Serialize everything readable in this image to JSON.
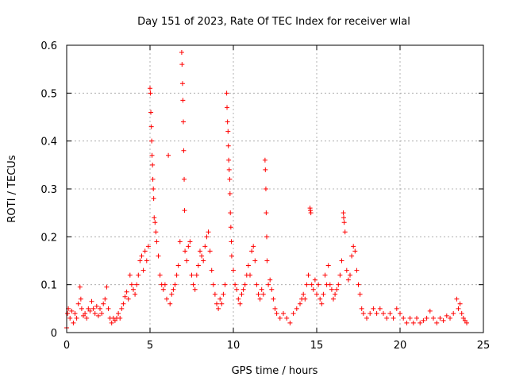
{
  "chart_data": {
    "type": "scatter",
    "title": "Day 151 of 2023, Rate Of TEC Index for receiver wlal",
    "xlabel": "GPS time / hours",
    "ylabel": "ROTI / TECUs",
    "xlim": [
      0,
      25
    ],
    "ylim": [
      0,
      0.6
    ],
    "xticks": [
      "0",
      "5",
      "10",
      "15",
      "20",
      "25"
    ],
    "yticks": [
      "0",
      "0.1",
      "0.2",
      "0.3",
      "0.4",
      "0.5",
      "0.6"
    ],
    "grid": true,
    "marker": "+",
    "series_color": "#ff0000",
    "series": [
      {
        "name": "ROTI",
        "points": [
          [
            0.0,
            0.01
          ],
          [
            0.05,
            0.04
          ],
          [
            0.1,
            0.05
          ],
          [
            0.2,
            0.03
          ],
          [
            0.3,
            0.045
          ],
          [
            0.4,
            0.02
          ],
          [
            0.5,
            0.04
          ],
          [
            0.6,
            0.03
          ],
          [
            0.7,
            0.06
          ],
          [
            0.8,
            0.095
          ],
          [
            0.85,
            0.07
          ],
          [
            0.9,
            0.05
          ],
          [
            1.0,
            0.035
          ],
          [
            1.1,
            0.04
          ],
          [
            1.2,
            0.03
          ],
          [
            1.3,
            0.05
          ],
          [
            1.4,
            0.045
          ],
          [
            1.5,
            0.065
          ],
          [
            1.6,
            0.05
          ],
          [
            1.7,
            0.04
          ],
          [
            1.8,
            0.055
          ],
          [
            1.9,
            0.035
          ],
          [
            2.0,
            0.05
          ],
          [
            2.1,
            0.04
          ],
          [
            2.2,
            0.06
          ],
          [
            2.3,
            0.07
          ],
          [
            2.4,
            0.095
          ],
          [
            2.5,
            0.05
          ],
          [
            2.6,
            0.03
          ],
          [
            2.7,
            0.02
          ],
          [
            2.8,
            0.03
          ],
          [
            2.9,
            0.025
          ],
          [
            3.0,
            0.03
          ],
          [
            3.1,
            0.04
          ],
          [
            3.2,
            0.03
          ],
          [
            3.3,
            0.05
          ],
          [
            3.4,
            0.06
          ],
          [
            3.5,
            0.075
          ],
          [
            3.6,
            0.085
          ],
          [
            3.7,
            0.07
          ],
          [
            3.8,
            0.12
          ],
          [
            3.9,
            0.1
          ],
          [
            4.0,
            0.09
          ],
          [
            4.1,
            0.08
          ],
          [
            4.2,
            0.1
          ],
          [
            4.3,
            0.12
          ],
          [
            4.4,
            0.15
          ],
          [
            4.5,
            0.16
          ],
          [
            4.6,
            0.13
          ],
          [
            4.7,
            0.17
          ],
          [
            4.8,
            0.15
          ],
          [
            4.9,
            0.18
          ],
          [
            5.0,
            0.51
          ],
          [
            5.02,
            0.5
          ],
          [
            5.05,
            0.46
          ],
          [
            5.08,
            0.43
          ],
          [
            5.1,
            0.4
          ],
          [
            5.12,
            0.37
          ],
          [
            5.15,
            0.35
          ],
          [
            5.17,
            0.32
          ],
          [
            5.2,
            0.3
          ],
          [
            5.22,
            0.28
          ],
          [
            5.25,
            0.24
          ],
          [
            5.3,
            0.23
          ],
          [
            5.35,
            0.21
          ],
          [
            5.4,
            0.19
          ],
          [
            5.5,
            0.16
          ],
          [
            5.6,
            0.12
          ],
          [
            5.7,
            0.1
          ],
          [
            5.8,
            0.09
          ],
          [
            5.9,
            0.1
          ],
          [
            6.0,
            0.07
          ],
          [
            6.1,
            0.37
          ],
          [
            6.2,
            0.06
          ],
          [
            6.3,
            0.08
          ],
          [
            6.4,
            0.09
          ],
          [
            6.5,
            0.1
          ],
          [
            6.6,
            0.12
          ],
          [
            6.7,
            0.14
          ],
          [
            6.8,
            0.19
          ],
          [
            6.9,
            0.585
          ],
          [
            6.92,
            0.56
          ],
          [
            6.95,
            0.52
          ],
          [
            6.97,
            0.485
          ],
          [
            7.0,
            0.44
          ],
          [
            7.02,
            0.38
          ],
          [
            7.05,
            0.32
          ],
          [
            7.07,
            0.255
          ],
          [
            7.1,
            0.17
          ],
          [
            7.2,
            0.15
          ],
          [
            7.3,
            0.18
          ],
          [
            7.4,
            0.19
          ],
          [
            7.5,
            0.12
          ],
          [
            7.6,
            0.1
          ],
          [
            7.7,
            0.09
          ],
          [
            7.8,
            0.12
          ],
          [
            7.9,
            0.14
          ],
          [
            8.0,
            0.17
          ],
          [
            8.1,
            0.16
          ],
          [
            8.2,
            0.15
          ],
          [
            8.3,
            0.18
          ],
          [
            8.4,
            0.2
          ],
          [
            8.5,
            0.21
          ],
          [
            8.6,
            0.17
          ],
          [
            8.7,
            0.13
          ],
          [
            8.8,
            0.1
          ],
          [
            8.9,
            0.08
          ],
          [
            9.0,
            0.06
          ],
          [
            9.1,
            0.05
          ],
          [
            9.2,
            0.07
          ],
          [
            9.3,
            0.06
          ],
          [
            9.4,
            0.08
          ],
          [
            9.5,
            0.1
          ],
          [
            9.6,
            0.5
          ],
          [
            9.62,
            0.47
          ],
          [
            9.65,
            0.44
          ],
          [
            9.68,
            0.42
          ],
          [
            9.7,
            0.39
          ],
          [
            9.72,
            0.36
          ],
          [
            9.75,
            0.34
          ],
          [
            9.78,
            0.32
          ],
          [
            9.8,
            0.29
          ],
          [
            9.82,
            0.25
          ],
          [
            9.85,
            0.22
          ],
          [
            9.88,
            0.19
          ],
          [
            9.9,
            0.16
          ],
          [
            10.0,
            0.13
          ],
          [
            10.1,
            0.1
          ],
          [
            10.2,
            0.09
          ],
          [
            10.3,
            0.07
          ],
          [
            10.4,
            0.06
          ],
          [
            10.5,
            0.08
          ],
          [
            10.6,
            0.09
          ],
          [
            10.7,
            0.1
          ],
          [
            10.8,
            0.12
          ],
          [
            10.9,
            0.14
          ],
          [
            11.0,
            0.12
          ],
          [
            11.1,
            0.17
          ],
          [
            11.2,
            0.18
          ],
          [
            11.3,
            0.15
          ],
          [
            11.4,
            0.1
          ],
          [
            11.5,
            0.08
          ],
          [
            11.6,
            0.07
          ],
          [
            11.7,
            0.09
          ],
          [
            11.8,
            0.08
          ],
          [
            11.9,
            0.36
          ],
          [
            11.92,
            0.34
          ],
          [
            11.95,
            0.3
          ],
          [
            11.97,
            0.25
          ],
          [
            12.0,
            0.2
          ],
          [
            12.02,
            0.15
          ],
          [
            12.1,
            0.1
          ],
          [
            12.2,
            0.11
          ],
          [
            12.3,
            0.09
          ],
          [
            12.4,
            0.07
          ],
          [
            12.5,
            0.05
          ],
          [
            12.6,
            0.04
          ],
          [
            12.8,
            0.03
          ],
          [
            13.0,
            0.04
          ],
          [
            13.2,
            0.03
          ],
          [
            13.4,
            0.02
          ],
          [
            13.6,
            0.04
          ],
          [
            13.8,
            0.05
          ],
          [
            14.0,
            0.06
          ],
          [
            14.1,
            0.07
          ],
          [
            14.2,
            0.08
          ],
          [
            14.3,
            0.07
          ],
          [
            14.4,
            0.1
          ],
          [
            14.5,
            0.12
          ],
          [
            14.6,
            0.26
          ],
          [
            14.62,
            0.255
          ],
          [
            14.65,
            0.25
          ],
          [
            14.7,
            0.1
          ],
          [
            14.8,
            0.09
          ],
          [
            14.9,
            0.11
          ],
          [
            15.0,
            0.08
          ],
          [
            15.1,
            0.1
          ],
          [
            15.2,
            0.07
          ],
          [
            15.3,
            0.06
          ],
          [
            15.4,
            0.08
          ],
          [
            15.5,
            0.12
          ],
          [
            15.6,
            0.1
          ],
          [
            15.7,
            0.14
          ],
          [
            15.8,
            0.1
          ],
          [
            15.9,
            0.09
          ],
          [
            16.0,
            0.07
          ],
          [
            16.1,
            0.08
          ],
          [
            16.2,
            0.09
          ],
          [
            16.3,
            0.1
          ],
          [
            16.4,
            0.12
          ],
          [
            16.5,
            0.15
          ],
          [
            16.6,
            0.25
          ],
          [
            16.62,
            0.24
          ],
          [
            16.65,
            0.23
          ],
          [
            16.7,
            0.21
          ],
          [
            16.8,
            0.13
          ],
          [
            16.9,
            0.11
          ],
          [
            17.0,
            0.12
          ],
          [
            17.1,
            0.16
          ],
          [
            17.2,
            0.18
          ],
          [
            17.3,
            0.17
          ],
          [
            17.4,
            0.13
          ],
          [
            17.5,
            0.1
          ],
          [
            17.6,
            0.08
          ],
          [
            17.7,
            0.05
          ],
          [
            17.8,
            0.04
          ],
          [
            18.0,
            0.03
          ],
          [
            18.2,
            0.04
          ],
          [
            18.4,
            0.05
          ],
          [
            18.6,
            0.04
          ],
          [
            18.8,
            0.05
          ],
          [
            19.0,
            0.04
          ],
          [
            19.2,
            0.03
          ],
          [
            19.4,
            0.04
          ],
          [
            19.6,
            0.03
          ],
          [
            19.8,
            0.05
          ],
          [
            20.0,
            0.04
          ],
          [
            20.2,
            0.03
          ],
          [
            20.4,
            0.02
          ],
          [
            20.6,
            0.03
          ],
          [
            20.8,
            0.02
          ],
          [
            21.0,
            0.03
          ],
          [
            21.2,
            0.02
          ],
          [
            21.4,
            0.025
          ],
          [
            21.6,
            0.03
          ],
          [
            21.8,
            0.045
          ],
          [
            22.0,
            0.03
          ],
          [
            22.2,
            0.02
          ],
          [
            22.4,
            0.03
          ],
          [
            22.6,
            0.025
          ],
          [
            22.8,
            0.035
          ],
          [
            23.0,
            0.03
          ],
          [
            23.2,
            0.04
          ],
          [
            23.4,
            0.07
          ],
          [
            23.5,
            0.05
          ],
          [
            23.6,
            0.06
          ],
          [
            23.7,
            0.04
          ],
          [
            23.8,
            0.03
          ],
          [
            23.9,
            0.025
          ],
          [
            24.0,
            0.02
          ]
        ]
      }
    ]
  }
}
